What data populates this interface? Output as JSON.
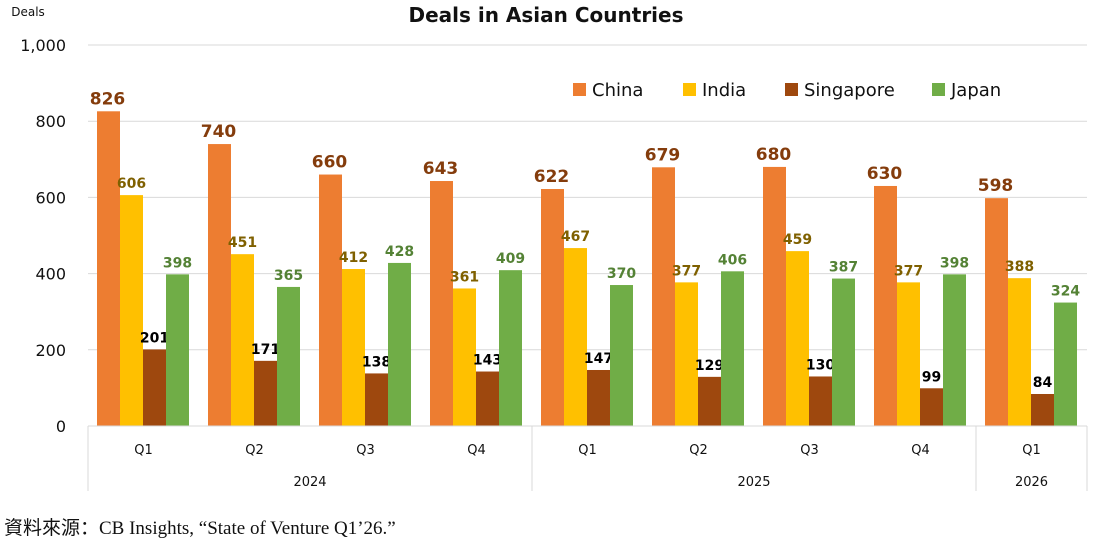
{
  "chart_data": {
    "type": "bar",
    "title": "Deals in Asian Countries",
    "ylabel": "Deals",
    "xlabel": "",
    "ylim": [
      0,
      1000
    ],
    "yticks": [
      "0",
      "200",
      "400",
      "600",
      "800",
      "1,000"
    ],
    "ytick_values": [
      0,
      200,
      400,
      600,
      800,
      1000
    ],
    "grid": true,
    "legend_position": "top-right",
    "categories": [
      "Q1",
      "Q2",
      "Q3",
      "Q4",
      "Q1",
      "Q2",
      "Q3",
      "Q4",
      "Q1"
    ],
    "year_groups": [
      {
        "label": "2024",
        "count": 4
      },
      {
        "label": "2025",
        "count": 4
      },
      {
        "label": "2026",
        "count": 1
      }
    ],
    "series": [
      {
        "name": "China",
        "color": "#ED7D31",
        "label_color": "#843C0C",
        "values": [
          826,
          740,
          660,
          643,
          622,
          679,
          680,
          630,
          598
        ]
      },
      {
        "name": "India",
        "color": "#FFC000",
        "label_color": "#7F6000",
        "values": [
          606,
          451,
          412,
          361,
          467,
          377,
          459,
          377,
          388
        ]
      },
      {
        "name": "Singapore",
        "color": "#9E480E",
        "label_color": "#000000",
        "values": [
          201,
          171,
          138,
          143,
          147,
          129,
          130,
          99,
          84
        ]
      },
      {
        "name": "Japan",
        "color": "#70AD47",
        "label_color": "#548235",
        "values": [
          398,
          365,
          428,
          409,
          370,
          406,
          387,
          398,
          324
        ]
      }
    ]
  },
  "source": "資料來源：CB Insights, “State of Venture Q1’26.”"
}
